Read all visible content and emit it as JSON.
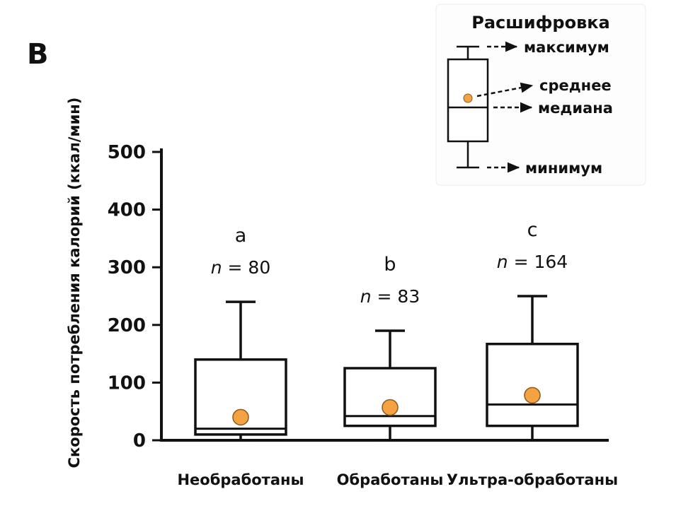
{
  "panel_label": "В",
  "y_axis": {
    "label": "Скорость потребления калорий (ккал/мин)",
    "ticks": [
      0,
      100,
      200,
      300,
      400,
      500
    ]
  },
  "legend": {
    "title": "Расшифровка",
    "items": [
      "максимум",
      "среднее",
      "медиана",
      "минимум"
    ]
  },
  "colors": {
    "mean_dot": "#F5A243",
    "mean_dot_edge": "#8A5A1E",
    "line": "#111111",
    "box_fill": "#FFFFFF"
  },
  "chart_data": {
    "type": "boxplot",
    "title": "",
    "xlabel": "",
    "ylabel": "Скорость потребления калорий (ккал/мин)",
    "ylim": [
      0,
      500
    ],
    "grid": false,
    "legend_position": "top-right",
    "categories": [
      "Необработаны",
      "Обработаны",
      "Ультра-обработаны"
    ],
    "series": [
      {
        "category": "Необработаны",
        "letter": "a",
        "n": 80,
        "min": 0,
        "q1": 10,
        "median": 20,
        "q3": 140,
        "max": 240,
        "mean": 40
      },
      {
        "category": "Обработаны",
        "letter": "b",
        "n": 83,
        "min": 0,
        "q1": 25,
        "median": 42,
        "q3": 125,
        "max": 190,
        "mean": 57
      },
      {
        "category": "Ультра-обработаны",
        "letter": "c",
        "n": 164,
        "min": 0,
        "q1": 25,
        "median": 62,
        "q3": 167,
        "max": 250,
        "mean": 78
      }
    ]
  }
}
